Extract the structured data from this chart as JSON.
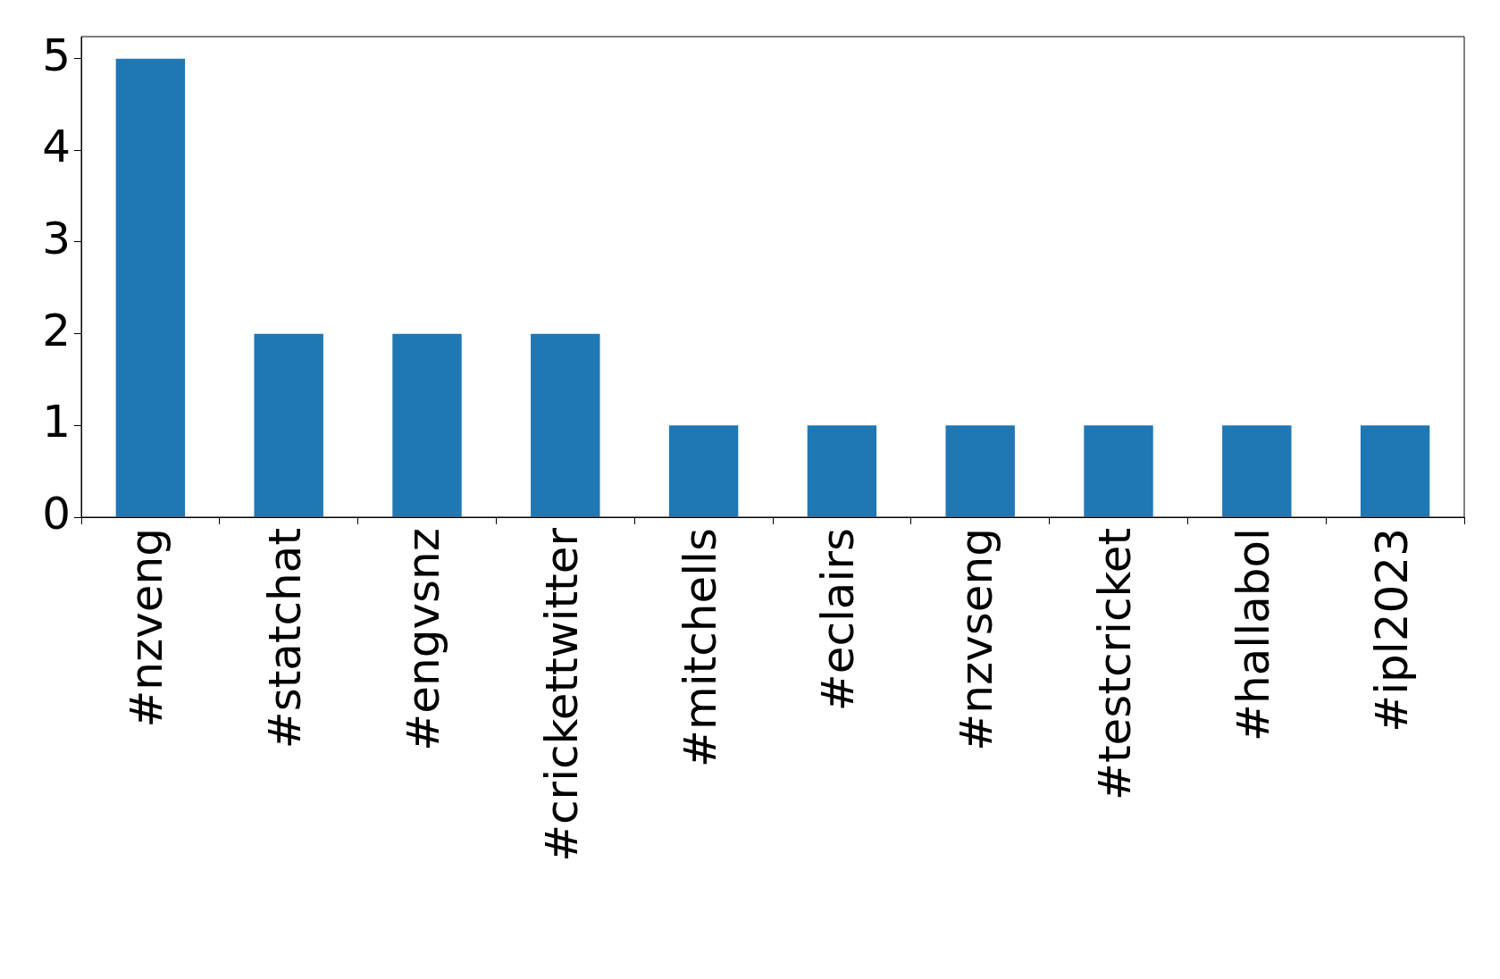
{
  "chart_data": {
    "type": "bar",
    "categories": [
      "#nzveng",
      "#statchat",
      "#engvsnz",
      "#crickettwitter",
      "#mitchells",
      "#eclairs",
      "#nzvseng",
      "#testcricket",
      "#hallabol",
      "#ipl2023"
    ],
    "values": [
      5,
      2,
      2,
      2,
      1,
      1,
      1,
      1,
      1,
      1
    ],
    "color": "#1f77b4",
    "ylim": [
      0,
      5.24
    ],
    "yticks": [
      0,
      1,
      2,
      3,
      4,
      5
    ],
    "legend": false
  }
}
